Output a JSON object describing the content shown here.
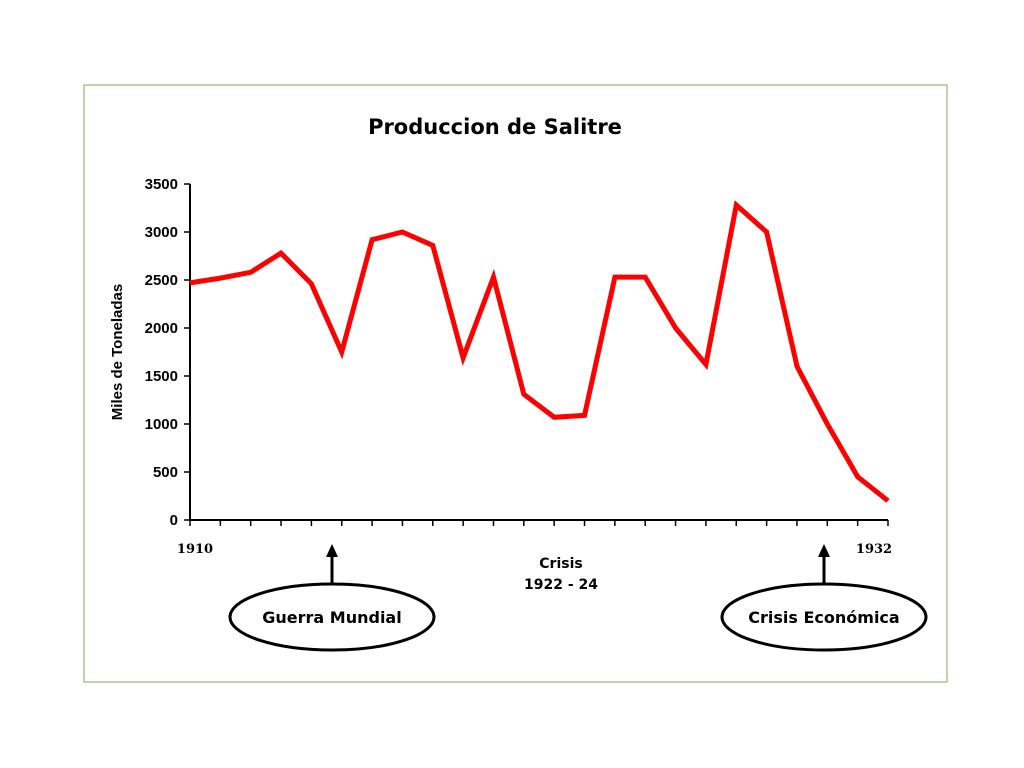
{
  "chart_data": {
    "type": "line",
    "title": "Produccion de Salitre",
    "xlabel": "",
    "ylabel": "Miles de Toneladas",
    "ylim": [
      0,
      3500
    ],
    "yticks": [
      0,
      500,
      1000,
      1500,
      2000,
      2500,
      3000,
      3500
    ],
    "xlim": [
      1910,
      1933
    ],
    "x_tick_labels": [
      "1910",
      "1932"
    ],
    "grid": false,
    "x": [
      1910,
      1911,
      1912,
      1913,
      1914,
      1915,
      1916,
      1917,
      1918,
      1919,
      1920,
      1921,
      1922,
      1923,
      1924,
      1925,
      1926,
      1927,
      1928,
      1929,
      1930,
      1931,
      1932,
      1933
    ],
    "series": [
      {
        "color": "#ff0000",
        "values": [
          2470,
          2520,
          2580,
          2780,
          2460,
          1750,
          2920,
          3000,
          2860,
          1690,
          2530,
          1310,
          1070,
          1090,
          2530,
          2530,
          2000,
          1620,
          3280,
          3000,
          1600,
          1000,
          450,
          200
        ]
      }
    ],
    "annotations": {
      "crisis_line1": "Crisis",
      "crisis_line2": "1922 - 24",
      "war_label": "Guerra Mundial",
      "economic_label": "Crisis Económica"
    }
  }
}
